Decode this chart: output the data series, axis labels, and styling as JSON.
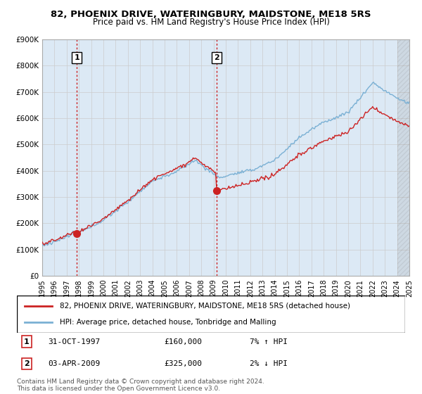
{
  "title": "82, PHOENIX DRIVE, WATERINGBURY, MAIDSTONE, ME18 5RS",
  "subtitle": "Price paid vs. HM Land Registry's House Price Index (HPI)",
  "ylim": [
    0,
    900000
  ],
  "yticks": [
    0,
    100000,
    200000,
    300000,
    400000,
    500000,
    600000,
    700000,
    800000,
    900000
  ],
  "ytick_labels": [
    "£0",
    "£100K",
    "£200K",
    "£300K",
    "£400K",
    "£500K",
    "£600K",
    "£700K",
    "£800K",
    "£900K"
  ],
  "hpi_color": "#7ab0d4",
  "price_color": "#cc2222",
  "vline_color": "#cc2222",
  "grid_color": "#cccccc",
  "background_color": "#ffffff",
  "plot_bg_color": "#dce9f5",
  "legend_label_price": "82, PHOENIX DRIVE, WATERINGBURY, MAIDSTONE, ME18 5RS (detached house)",
  "legend_label_hpi": "HPI: Average price, detached house, Tonbridge and Malling",
  "annotation1_label": "1",
  "annotation1_year": 1997.83,
  "annotation1_value": 160000,
  "annotation1_text": "31-OCT-1997",
  "annotation1_price": "£160,000",
  "annotation1_hpi": "7% ↑ HPI",
  "annotation2_label": "2",
  "annotation2_year": 2009.25,
  "annotation2_value": 325000,
  "annotation2_text": "03-APR-2009",
  "annotation2_price": "£325,000",
  "annotation2_hpi": "2% ↓ HPI",
  "footer": "Contains HM Land Registry data © Crown copyright and database right 2024.\nThis data is licensed under the Open Government Licence v3.0.",
  "xmin": 1995,
  "xmax": 2025
}
